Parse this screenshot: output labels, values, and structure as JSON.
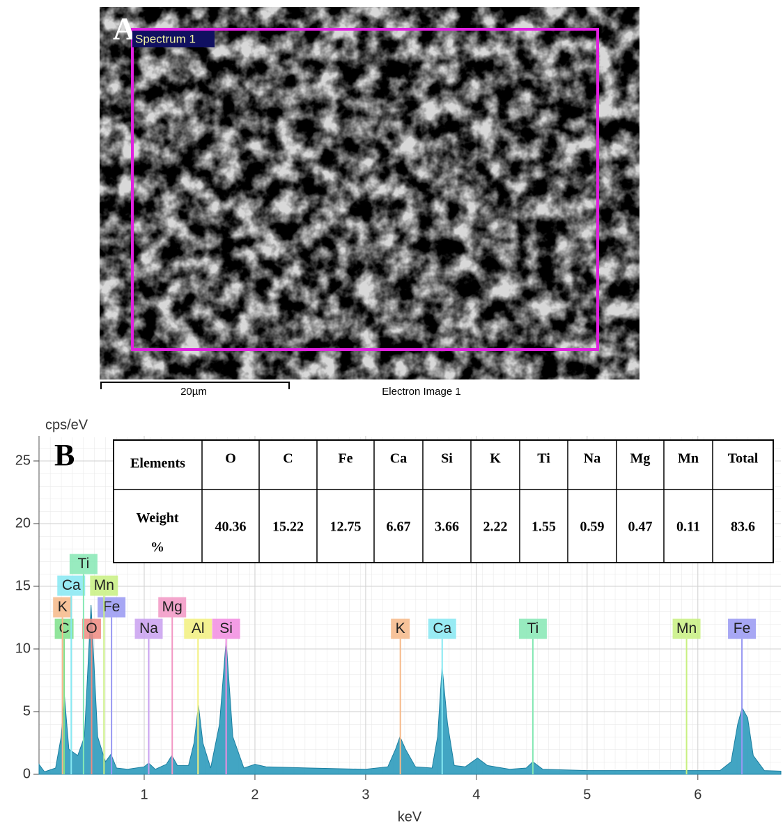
{
  "image_panel": {
    "label": "A",
    "region_label": "Spectrum 1",
    "scale_bar": "20µm",
    "caption": "Electron Image 1"
  },
  "chart_data": {
    "type": "area",
    "panel_label": "B",
    "y_label": "cps/eV",
    "x_label": "keV",
    "xlim": [
      0.05,
      6.75
    ],
    "ylim": [
      0,
      27
    ],
    "xticks": [
      1,
      2,
      3,
      4,
      5,
      6
    ],
    "yticks": [
      0,
      5,
      10,
      15,
      20,
      25
    ],
    "color": "#2e9bbd",
    "x": [
      0.05,
      0.1,
      0.2,
      0.25,
      0.28,
      0.32,
      0.4,
      0.46,
      0.52,
      0.58,
      0.65,
      0.7,
      0.75,
      0.85,
      1.0,
      1.04,
      1.1,
      1.2,
      1.25,
      1.3,
      1.4,
      1.45,
      1.49,
      1.53,
      1.6,
      1.68,
      1.74,
      1.8,
      1.9,
      2.0,
      2.1,
      2.5,
      3.0,
      3.2,
      3.27,
      3.31,
      3.36,
      3.45,
      3.6,
      3.65,
      3.69,
      3.74,
      3.8,
      3.9,
      4.01,
      4.1,
      4.3,
      4.45,
      4.51,
      4.6,
      5.0,
      5.5,
      5.9,
      6.2,
      6.3,
      6.36,
      6.4,
      6.45,
      6.5,
      6.6,
      6.75
    ],
    "values": [
      0.8,
      0.2,
      0.5,
      3,
      6.2,
      2,
      1.5,
      3,
      13.5,
      3,
      1,
      1.6,
      0.5,
      0.4,
      0.6,
      0.9,
      0.4,
      0.8,
      1.5,
      0.7,
      0.7,
      2.5,
      5.5,
      2.5,
      0.5,
      4,
      10.7,
      3,
      0.5,
      0.8,
      0.6,
      0.5,
      0.4,
      0.6,
      2,
      3,
      2,
      0.6,
      0.5,
      3,
      8.6,
      4,
      0.7,
      0.6,
      1.3,
      0.7,
      0.4,
      0.5,
      1,
      0.4,
      0.3,
      0.3,
      0.3,
      0.3,
      1,
      4,
      5.3,
      4.5,
      1.5,
      0.3,
      0.25
    ],
    "element_lines": [
      {
        "name": "C",
        "x": 0.277,
        "color": "#7ee08a"
      },
      {
        "name": "O",
        "x": 0.525,
        "color": "#f08a80"
      },
      {
        "name": "Na",
        "x": 1.041,
        "color": "#c9a0f0"
      },
      {
        "name": "Si",
        "x": 1.74,
        "color": "#f28ce0"
      },
      {
        "name": "K",
        "x": 3.313,
        "color": "#f6b888"
      },
      {
        "name": "Ca",
        "x": 3.691,
        "color": "#86e8f2"
      },
      {
        "name": "Ti",
        "x": 4.51,
        "color": "#86e8b4"
      },
      {
        "name": "Mn",
        "x": 5.898,
        "color": "#c8f080"
      },
      {
        "name": "Fe",
        "x": 6.398,
        "color": "#9898f2"
      },
      {
        "name": "Fe",
        "x": 0.705,
        "color": "#9898f2"
      },
      {
        "name": "Mg",
        "x": 1.253,
        "color": "#f296c4"
      },
      {
        "name": "Al",
        "x": 1.486,
        "color": "#f2f07e"
      },
      {
        "name": "Mn",
        "x": 0.637,
        "color": "#c8f080"
      },
      {
        "name": "K",
        "x": 0.262,
        "color": "#f6b888"
      },
      {
        "name": "Ca",
        "x": 0.341,
        "color": "#86e8f2"
      },
      {
        "name": "Ti",
        "x": 0.452,
        "color": "#86e8b4"
      }
    ],
    "table": {
      "header": [
        "Elements",
        "O",
        "C",
        "Fe",
        "Ca",
        "Si",
        "K",
        "Ti",
        "Na",
        "Mg",
        "Mn",
        "Total"
      ],
      "row_label": "Weight %",
      "values": [
        40.36,
        15.22,
        12.75,
        6.67,
        3.66,
        2.22,
        1.55,
        0.59,
        0.47,
        0.11,
        83.6
      ]
    }
  }
}
